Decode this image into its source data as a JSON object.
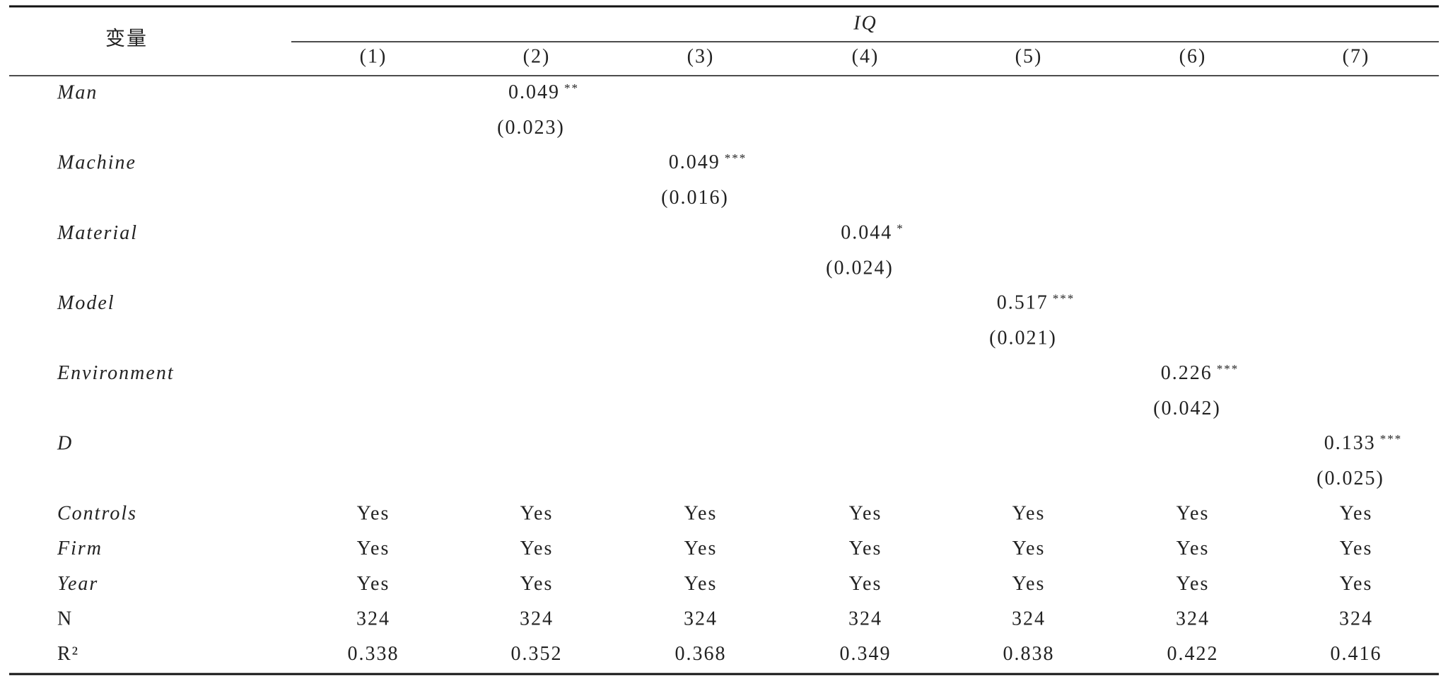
{
  "table": {
    "header": {
      "corner": "变量",
      "group": "IQ",
      "columns": [
        "(1)",
        "(2)",
        "(3)",
        "(4)",
        "(5)",
        "(6)",
        "(7)"
      ]
    },
    "variables": [
      {
        "name": "Man",
        "cells": [
          null,
          {
            "estimate": "0.049",
            "stars": "**",
            "se": "(0.023)"
          },
          null,
          null,
          null,
          null,
          null
        ]
      },
      {
        "name": "Machine",
        "cells": [
          null,
          null,
          {
            "estimate": "0.049",
            "stars": "***",
            "se": "(0.016)"
          },
          null,
          null,
          null,
          null
        ]
      },
      {
        "name": "Material",
        "cells": [
          null,
          null,
          null,
          {
            "estimate": "0.044",
            "stars": "*",
            "se": "(0.024)"
          },
          null,
          null,
          null
        ]
      },
      {
        "name": "Model",
        "cells": [
          null,
          null,
          null,
          null,
          {
            "estimate": "0.517",
            "stars": "***",
            "se": "(0.021)"
          },
          null,
          null
        ]
      },
      {
        "name": "Environment",
        "cells": [
          null,
          null,
          null,
          null,
          null,
          {
            "estimate": "0.226",
            "stars": "***",
            "se": "(0.042)"
          },
          null
        ]
      },
      {
        "name": "D",
        "cells": [
          null,
          null,
          null,
          null,
          null,
          null,
          {
            "estimate": "0.133",
            "stars": "***",
            "se": "(0.025)"
          }
        ]
      }
    ],
    "rows": [
      {
        "label": "Controls",
        "italic": true,
        "cells": [
          "Yes",
          "Yes",
          "Yes",
          "Yes",
          "Yes",
          "Yes",
          "Yes"
        ]
      },
      {
        "label": "Firm",
        "italic": true,
        "cells": [
          "Yes",
          "Yes",
          "Yes",
          "Yes",
          "Yes",
          "Yes",
          "Yes"
        ]
      },
      {
        "label": "Year",
        "italic": true,
        "cells": [
          "Yes",
          "Yes",
          "Yes",
          "Yes",
          "Yes",
          "Yes",
          "Yes"
        ]
      },
      {
        "label": "N",
        "italic": false,
        "cells": [
          "324",
          "324",
          "324",
          "324",
          "324",
          "324",
          "324"
        ]
      },
      {
        "label": "R²",
        "italic": false,
        "cells": [
          "0.338",
          "0.352",
          "0.368",
          "0.349",
          "0.838",
          "0.422",
          "0.416"
        ]
      }
    ]
  }
}
